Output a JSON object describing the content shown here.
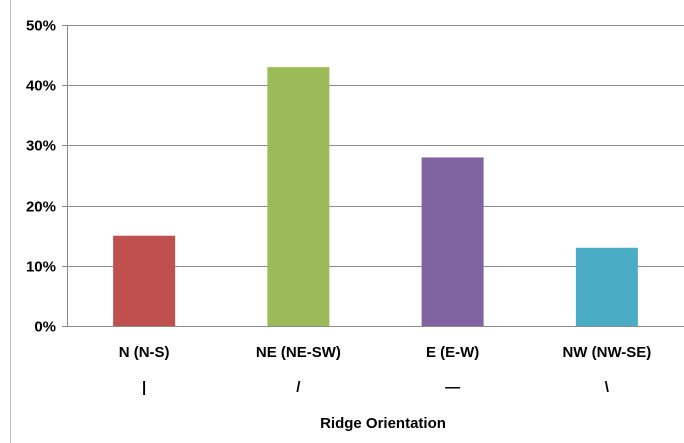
{
  "chart_data": {
    "type": "bar",
    "title": "",
    "xlabel": "Ridge Orientation",
    "ylabel": "",
    "ylim": [
      0,
      50
    ],
    "y_ticks": [
      "0%",
      "10%",
      "20%",
      "30%",
      "40%",
      "50%"
    ],
    "grid": true,
    "legend": "none",
    "categories": [
      "N (N-S)",
      "NE (NE-SW)",
      "E (E-W)",
      "NW (NW-SE)"
    ],
    "orientation_symbols": [
      "|",
      "/",
      "—",
      "\\"
    ],
    "values": [
      15,
      43,
      28,
      13
    ],
    "colors": [
      "#c0504d",
      "#9bbb59",
      "#8064a2",
      "#4bacc6"
    ]
  }
}
